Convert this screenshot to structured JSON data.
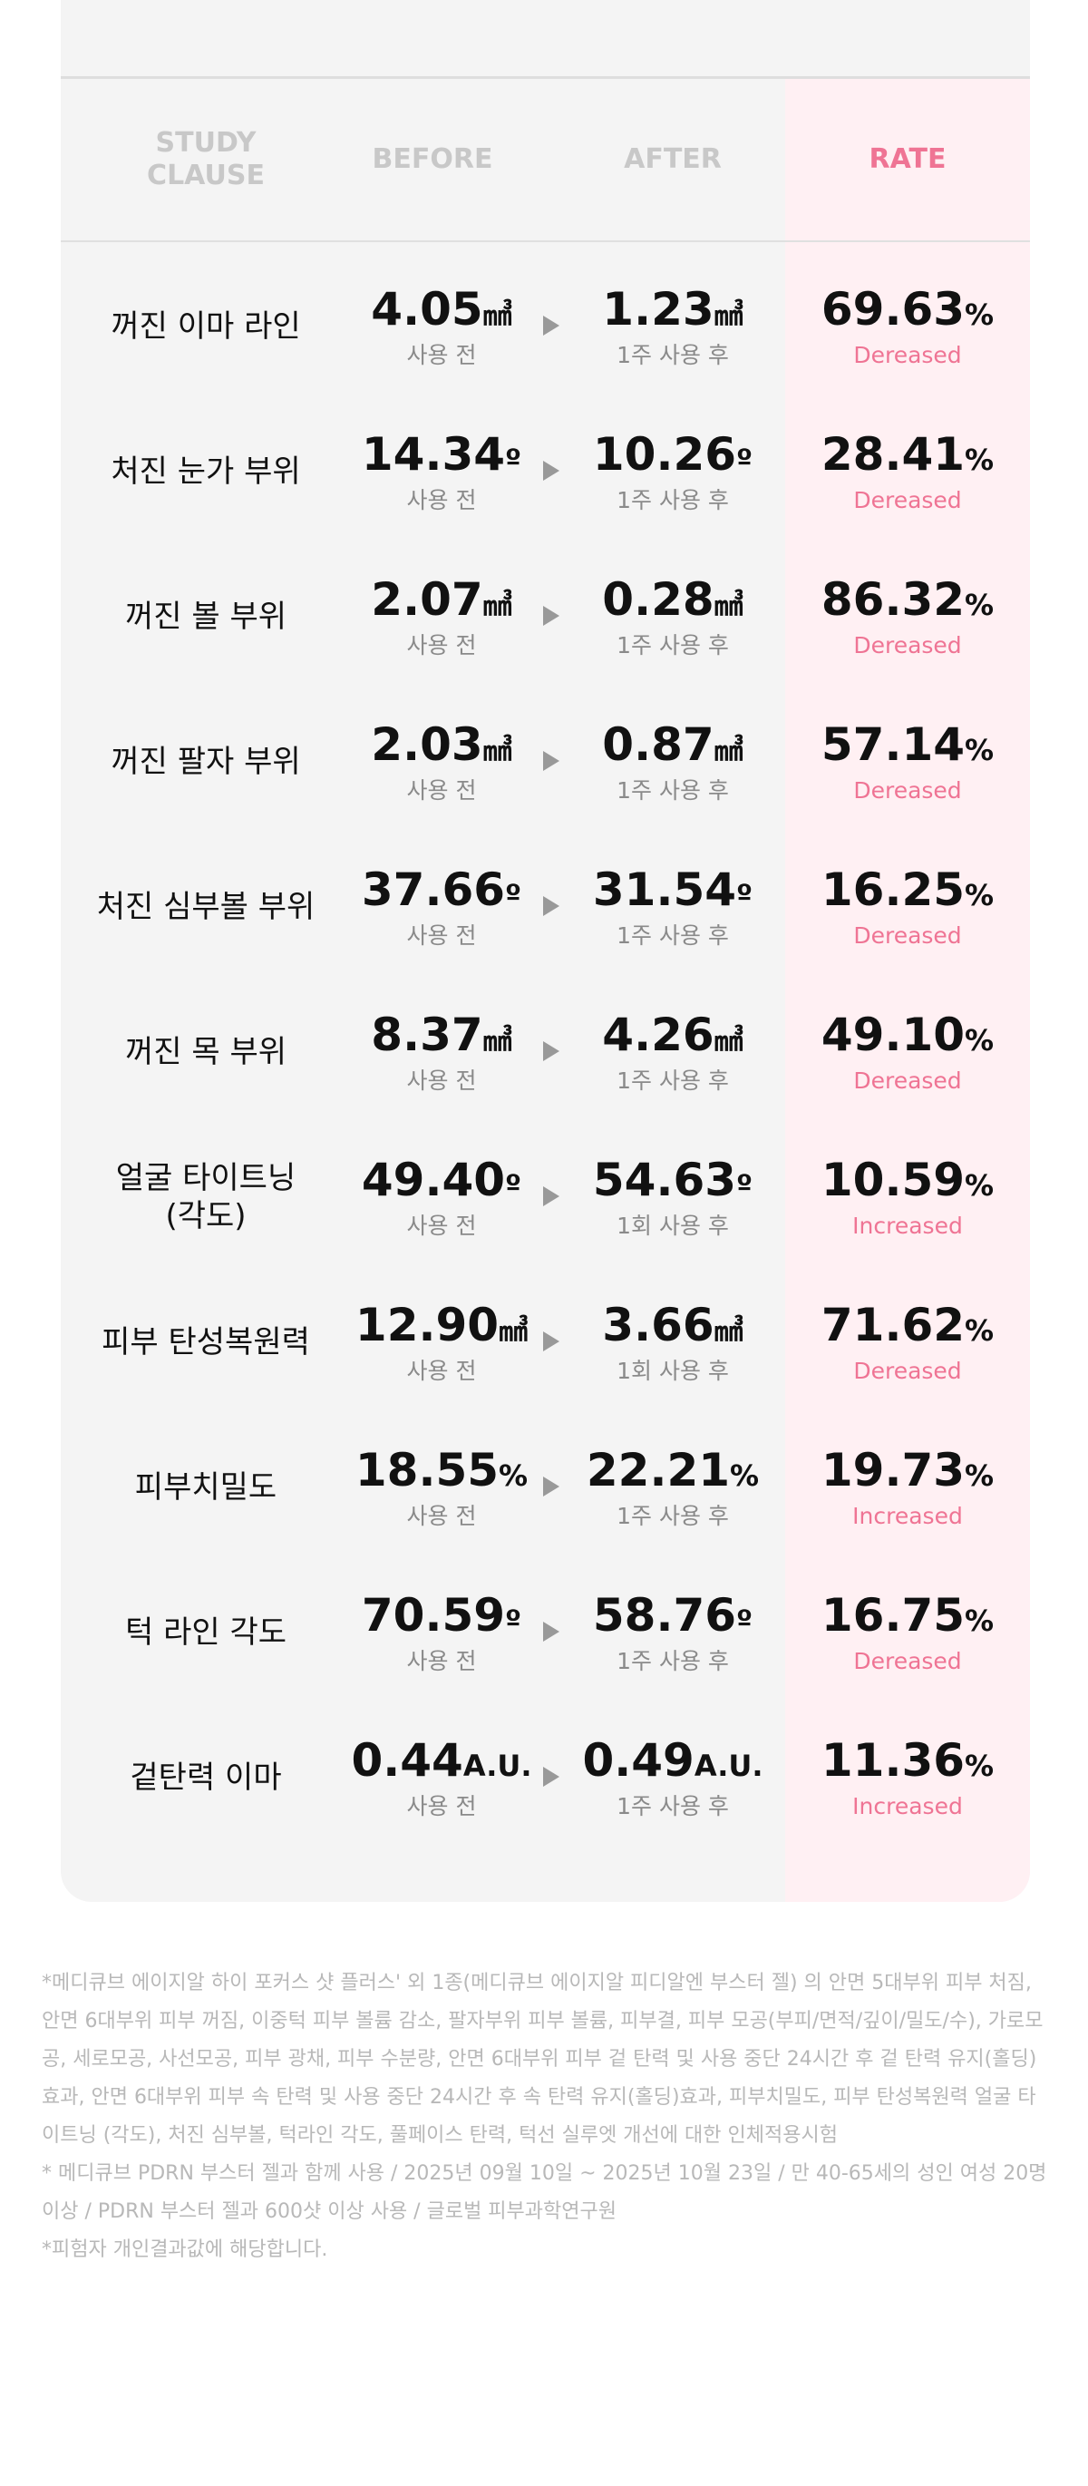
{
  "header": {
    "columns": [
      "STUDY\nCLAUSE",
      "BEFORE",
      "AFTER",
      "RATE"
    ]
  },
  "table": {
    "rows": [
      {
        "label": "꺼진 이마 라인",
        "before": "4.05",
        "before_unit": "㎣",
        "before_caption": "사용 전",
        "after": "1.23",
        "after_unit": "㎣",
        "after_caption": "1주 사용 후",
        "rate": "69.63",
        "rate_unit": "%",
        "rate_caption": "Dereased"
      },
      {
        "label": "처진 눈가 부위",
        "before": "14.34",
        "before_unit": "º",
        "before_caption": "사용 전",
        "after": "10.26",
        "after_unit": "º",
        "after_caption": "1주 사용 후",
        "rate": "28.41",
        "rate_unit": "%",
        "rate_caption": "Dereased"
      },
      {
        "label": "꺼진 볼 부위",
        "before": "2.07",
        "before_unit": "㎣",
        "before_caption": "사용 전",
        "after": "0.28",
        "after_unit": "㎣",
        "after_caption": "1주 사용 후",
        "rate": "86.32",
        "rate_unit": "%",
        "rate_caption": "Dereased"
      },
      {
        "label": "꺼진 팔자 부위",
        "before": "2.03",
        "before_unit": "㎣",
        "before_caption": "사용 전",
        "after": "0.87",
        "after_unit": "㎣",
        "after_caption": "1주 사용 후",
        "rate": "57.14",
        "rate_unit": "%",
        "rate_caption": "Dereased"
      },
      {
        "label": "처진 심부볼 부위",
        "before": "37.66",
        "before_unit": "º",
        "before_caption": "사용 전",
        "after": "31.54",
        "after_unit": "º",
        "after_caption": "1주 사용 후",
        "rate": "16.25",
        "rate_unit": "%",
        "rate_caption": "Dereased"
      },
      {
        "label": "꺼진 목 부위",
        "before": "8.37",
        "before_unit": "㎣",
        "before_caption": "사용 전",
        "after": "4.26",
        "after_unit": "㎣",
        "after_caption": "1주 사용 후",
        "rate": "49.10",
        "rate_unit": "%",
        "rate_caption": "Dereased"
      },
      {
        "label": "얼굴 타이트닝\n(각도)",
        "before": "49.40",
        "before_unit": "º",
        "before_caption": "사용 전",
        "after": "54.63",
        "after_unit": "º",
        "after_caption": "1회 사용 후",
        "rate": "10.59",
        "rate_unit": "%",
        "rate_caption": "Increased"
      },
      {
        "label": "피부 탄성복원력",
        "before": "12.90",
        "before_unit": "㎣",
        "before_caption": "사용 전",
        "after": "3.66",
        "after_unit": "㎣",
        "after_caption": "1회 사용 후",
        "rate": "71.62",
        "rate_unit": "%",
        "rate_caption": "Dereased"
      },
      {
        "label": "피부치밀도",
        "before": "18.55",
        "before_unit": "%",
        "before_caption": "사용 전",
        "after": "22.21",
        "after_unit": "%",
        "after_caption": "1주 사용 후",
        "rate": "19.73",
        "rate_unit": "%",
        "rate_caption": "Increased"
      },
      {
        "label": "턱 라인 각도",
        "before": "70.59",
        "before_unit": "º",
        "before_caption": "사용 전",
        "after": "58.76",
        "after_unit": "º",
        "after_caption": "1주 사용 후",
        "rate": "16.75",
        "rate_unit": "%",
        "rate_caption": "Dereased"
      },
      {
        "label": "겉탄력 이마",
        "before": "0.44",
        "before_unit": "A.U.",
        "before_caption": "사용 전",
        "after": "0.49",
        "after_unit": "A.U.",
        "after_caption": "1주 사용 후",
        "rate": "11.36",
        "rate_unit": "%",
        "rate_caption": "Increased"
      }
    ]
  },
  "notes": [
    "*메디큐브 에이지알 하이 포커스 샷 플러스' 외 1종(메디큐브 에이지알 피디알엔 부스터 젤) 의 안면 5대부위 피부 처짐, 안면 6대부위 피부 꺼짐, 이중턱 피부 볼륨 감소, 팔자부위 피부 볼륨, 피부결, 피부 모공(부피/면적/깊이/밀도/수), 가로모공, 세로모공, 사선모공, 피부 광채, 피부 수분량, 안면 6대부위 피부 겉 탄력 및 사용 중단 24시간 후 겉 탄력 유지(홀딩)효과, 안면 6대부위 피부 속 탄력 및 사용 중단 24시간 후 속 탄력 유지(홀딩)효과, 피부치밀도, 피부 탄성복원력 얼굴 타이트닝 (각도), 처진 심부볼, 턱라인 각도, 풀페이스 탄력, 턱선 실루엣 개선에 대한 인체적용시험",
    "* 메디큐브 PDRN 부스터 젤과 함께 사용 / 2025년 09월 10일 ~ 2025년 10월 23일 / 만 40-65세의 성인 여성 20명 이상 / PDRN 부스터 젤과 600샷 이상 사용 / 글로벌 피부과학연구원",
    "*피험자 개인결과값에 해당합니다."
  ]
}
